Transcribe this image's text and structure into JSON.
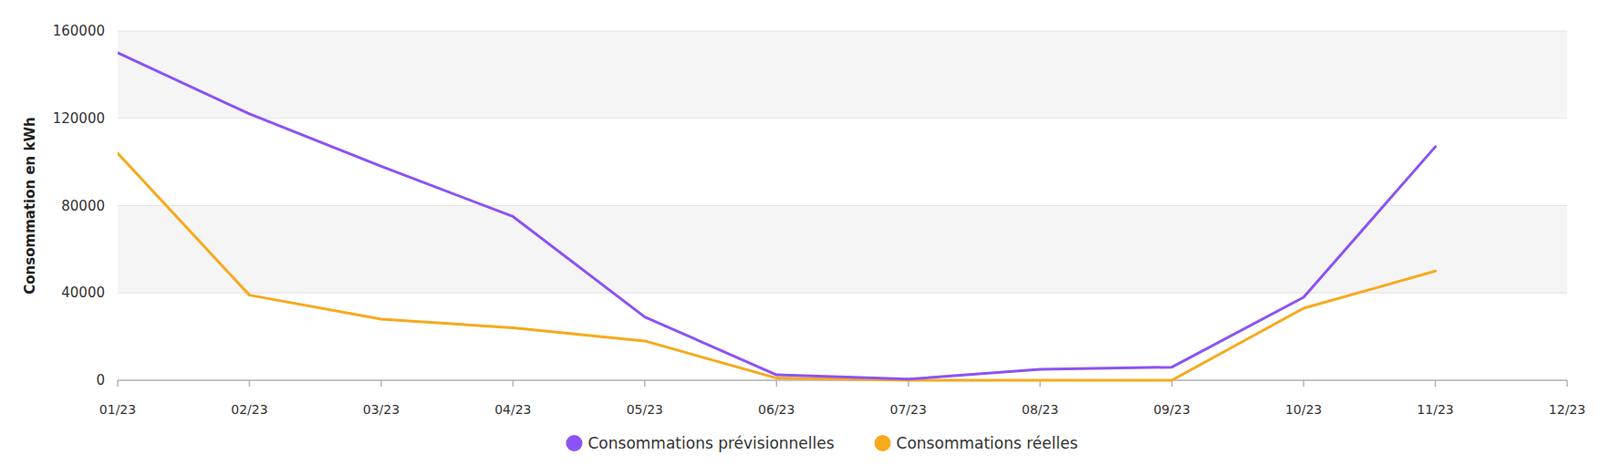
{
  "chart_data": {
    "type": "line",
    "y_label": "Consommation en kWh",
    "categories": [
      "01/23",
      "02/23",
      "03/23",
      "04/23",
      "05/23",
      "06/23",
      "07/23",
      "08/23",
      "09/23",
      "10/23",
      "11/23",
      "12/23"
    ],
    "series": [
      {
        "name": "Consommations prévisionnelles",
        "color": "#8c52f5",
        "values": [
          150000,
          122000,
          98000,
          75000,
          29000,
          2500,
          500,
          5000,
          6000,
          38000,
          107000,
          null
        ]
      },
      {
        "name": "Consommations réelles",
        "color": "#f8a91c",
        "values": [
          104000,
          39000,
          28000,
          24000,
          18000,
          1000,
          0,
          0,
          0,
          33000,
          50000,
          null
        ]
      }
    ],
    "ylim": [
      0,
      160000
    ],
    "yticks": [
      0,
      40000,
      80000,
      120000,
      160000
    ],
    "grid": true,
    "legend": "bottom"
  }
}
